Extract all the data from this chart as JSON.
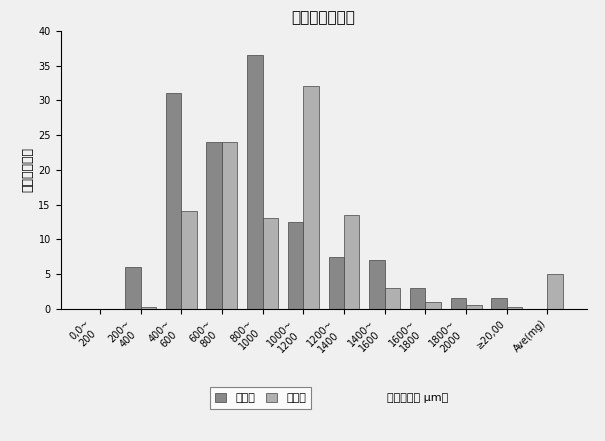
{
  "title": "膜厚分布柱状图",
  "ylabel": "分布百分比（",
  "xlabel_note": "（膜平均値 μm）",
  "legend1": "优化前",
  "legend2": "优化后",
  "xtick_labels": [
    "0,0~\n200",
    "200~\n400",
    "400~\n600",
    "600~\n800",
    "800~\n1000",
    "1000~\n1200",
    "1200~\n1400",
    "1400~\n1600",
    "1600~\n1800",
    "1800~\n2000",
    "≥20,00",
    "Ave(mg)"
  ],
  "series1_values": [
    0,
    6,
    31,
    24,
    36.5,
    12.5,
    7.5,
    7,
    3,
    1.5,
    1.5,
    0
  ],
  "series2_values": [
    0,
    0.2,
    14,
    24,
    13,
    32,
    13.5,
    3,
    1,
    0.5,
    0.2,
    5
  ],
  "bar_color1": "#888888",
  "bar_color2": "#b0b0b0",
  "edge_color": "#444444",
  "ylim": [
    0,
    40
  ],
  "yticks": [
    0,
    5,
    10,
    15,
    20,
    25,
    30,
    35,
    40
  ],
  "background_color": "#f0f0f0",
  "title_fontsize": 11,
  "ylabel_fontsize": 9,
  "tick_fontsize": 7,
  "legend_fontsize": 8,
  "note_fontsize": 8
}
